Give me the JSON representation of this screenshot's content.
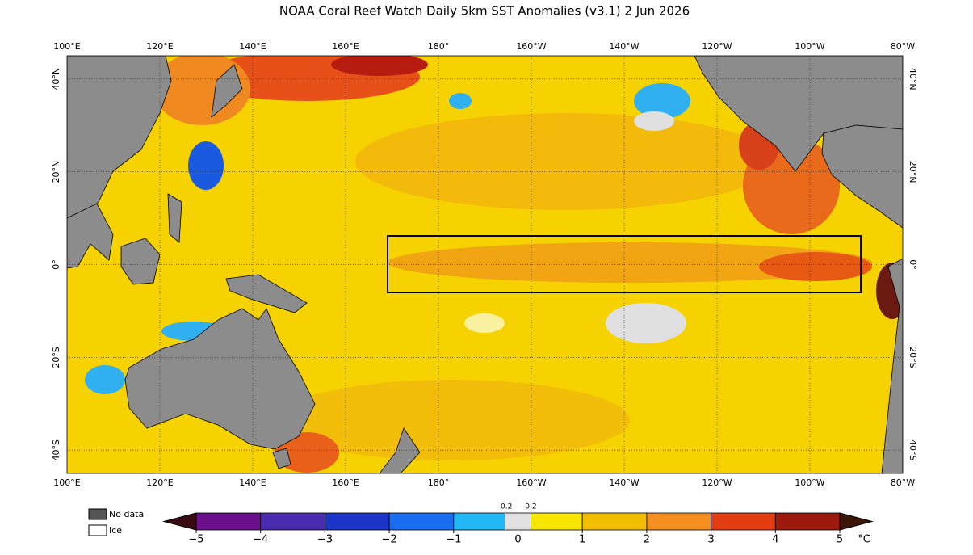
{
  "title": "NOAA Coral Reef Watch Daily 5km SST Anomalies  (v3.1)   2 Jun 2026",
  "map": {
    "xlim": [
      100,
      280
    ],
    "ylim": [
      -45,
      45
    ],
    "longitudes": [
      {
        "value": 100,
        "label": "100°E"
      },
      {
        "value": 120,
        "label": "120°E"
      },
      {
        "value": 140,
        "label": "140°E"
      },
      {
        "value": 160,
        "label": "160°E"
      },
      {
        "value": 180,
        "label": "180°"
      },
      {
        "value": 200,
        "label": "160°W"
      },
      {
        "value": 220,
        "label": "140°W"
      },
      {
        "value": 240,
        "label": "120°W"
      },
      {
        "value": 260,
        "label": "100°W"
      },
      {
        "value": 280,
        "label": "80°W"
      }
    ],
    "latitudes": [
      {
        "value": 40,
        "label": "40°N"
      },
      {
        "value": 20,
        "label": "20°N"
      },
      {
        "value": 0,
        "label": "0°"
      },
      {
        "value": -20,
        "label": "20°S"
      },
      {
        "value": -40,
        "label": "40°S"
      }
    ]
  },
  "legend": [
    {
      "label": "No data",
      "color": "#555555"
    },
    {
      "label": "Ice",
      "color": "#ffffff"
    }
  ],
  "colorbar": {
    "lim": [
      -5,
      5
    ],
    "unit": "°C",
    "bounds": [
      -5,
      -4,
      -3,
      -2,
      -1,
      -0.2,
      0.2,
      1,
      2,
      3,
      4,
      5
    ],
    "colors": [
      "#6c0f8c",
      "#4a2cae",
      "#1c34c8",
      "#1a6cf0",
      "#22b8f6",
      "#e2e2e2",
      "#f7e600",
      "#f2c000",
      "#f59020",
      "#e23c10",
      "#9c1a0e"
    ],
    "end_colors": [
      "#3a0a12",
      "#3a1508"
    ],
    "ticks": [
      {
        "value": -5,
        "label": "−5"
      },
      {
        "value": -4,
        "label": "−4"
      },
      {
        "value": -3,
        "label": "−3"
      },
      {
        "value": -2,
        "label": "−2"
      },
      {
        "value": -1,
        "label": "−1"
      },
      0,
      1,
      2,
      3,
      4,
      5
    ],
    "small_ticks": [
      -0.2,
      0.2
    ]
  }
}
